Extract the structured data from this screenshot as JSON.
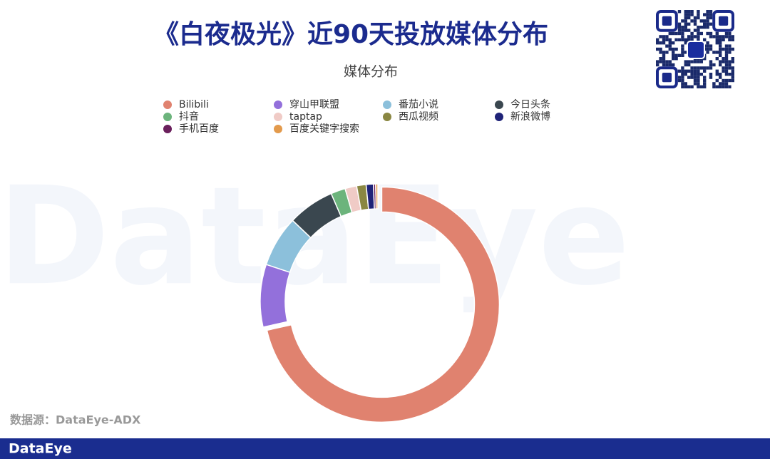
{
  "chart_data": {
    "type": "donut",
    "title": "《白夜极光》近90天投放媒体分布",
    "subtitle": "媒体分布",
    "categories": [
      "Bilibili",
      "穿山甲联盟",
      "番茄小说",
      "今日头条",
      "抖音",
      "taptap",
      "西瓜视频",
      "新浪微博",
      "手机百度",
      "百度关键字搜索"
    ],
    "values": [
      71.5,
      8.6,
      7,
      6.4,
      2,
      1.6,
      1.3,
      1,
      0.3,
      0.3
    ],
    "colors": [
      "#e0826f",
      "#9370db",
      "#8cc0db",
      "#3a474f",
      "#6cb47c",
      "#f0cbc6",
      "#8a8742",
      "#1f2378",
      "#6a1f5c",
      "#e39a4c"
    ],
    "legend": "top"
  },
  "source": "数据源：DataEye-ADX",
  "brand": "DataEye",
  "watermark": "DataEye"
}
